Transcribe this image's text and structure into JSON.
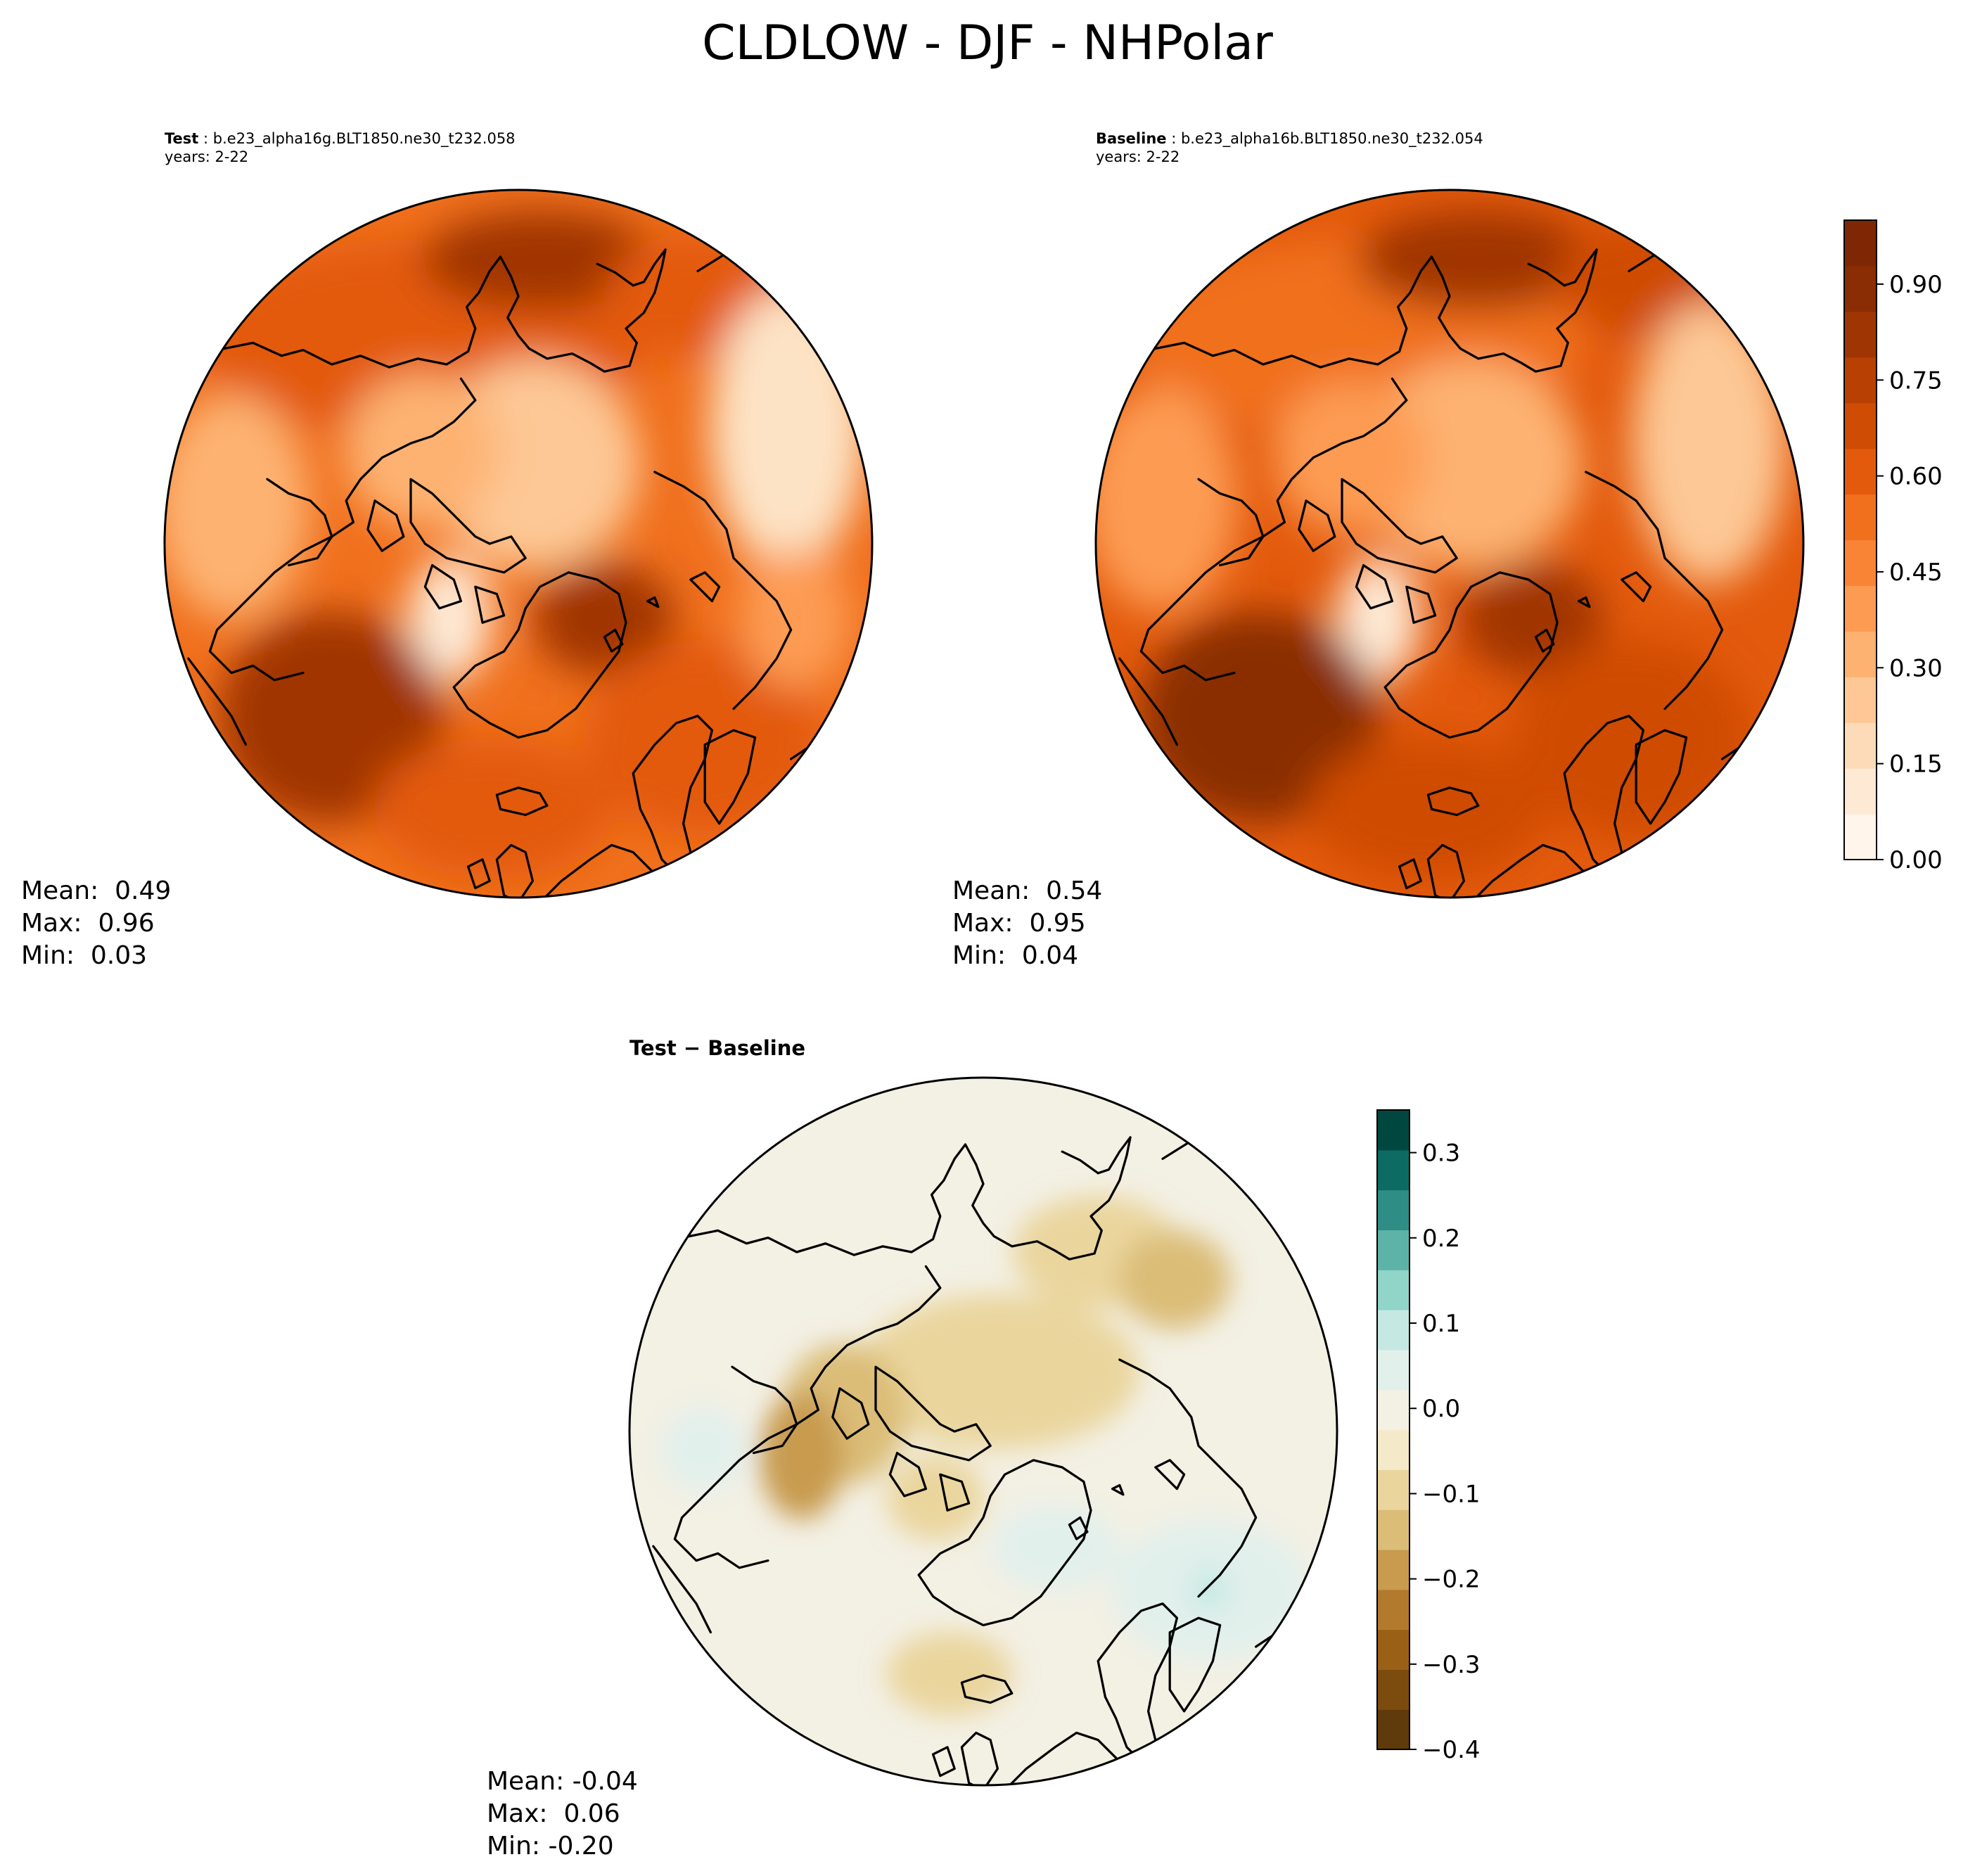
{
  "title": "CLDLOW - DJF - NHPolar",
  "panels": [
    {
      "label": "Test",
      "case": "b.e23_alpha16g.BLT1850.ne30_t232.058",
      "years": "years: 2-22",
      "stats": {
        "mean": "Mean:  0.49",
        "max": "Max:  0.96",
        "min": "Min:  0.03"
      }
    },
    {
      "label": "Baseline",
      "case": "b.e23_alpha16b.BLT1850.ne30_t232.054",
      "years": "years: 2-22",
      "stats": {
        "mean": "Mean:  0.54",
        "max": "Max:  0.95",
        "min": "Min:  0.04"
      }
    },
    {
      "label": "Test − Baseline",
      "stats": {
        "mean": "Mean: -0.04",
        "max": "Max:  0.06",
        "min": "Min: -0.20"
      }
    }
  ],
  "colorbars": {
    "abs": {
      "ticks": [
        "0.00",
        "0.15",
        "0.30",
        "0.45",
        "0.60",
        "0.75",
        "0.90"
      ],
      "tick_values": [
        0.0,
        0.15,
        0.3,
        0.45,
        0.6,
        0.75,
        0.9
      ],
      "range": [
        0.0,
        1.0
      ],
      "colors": [
        "#fff5eb",
        "#fee9d4",
        "#fddbb8",
        "#fdc895",
        "#fdb272",
        "#fd9b52",
        "#f98435",
        "#f0701d",
        "#e35a0c",
        "#cf4c04",
        "#b94003",
        "#a03504",
        "#8a2d04",
        "#7f2704"
      ]
    },
    "diff": {
      "ticks": [
        "−0.4",
        "−0.3",
        "−0.2",
        "−0.1",
        "0.0",
        "0.1",
        "0.2",
        "0.3"
      ],
      "tick_values": [
        -0.4,
        -0.3,
        -0.2,
        -0.1,
        0.0,
        0.1,
        0.2,
        0.3
      ],
      "range": [
        -0.4,
        0.35
      ],
      "colors": [
        "#5f3a0a",
        "#7c4c0f",
        "#996016",
        "#b27a2c",
        "#c89b4f",
        "#dbbd78",
        "#ead59d",
        "#f4e9c8",
        "#f3f0e4",
        "#e2f0ec",
        "#c5e9e2",
        "#91d4c8",
        "#5db3a7",
        "#2e8e85",
        "#0c6b62",
        "#00483f"
      ]
    }
  },
  "chart_data": [
    {
      "type": "heatmap",
      "title": "Test : b.e23_alpha16g.BLT1850.ne30_t232.058",
      "subtitle": "years: 2-22",
      "projection": "north polar stereographic",
      "variable": "CLDLOW",
      "season": "DJF",
      "colormap": "Oranges",
      "clim": [
        0.0,
        1.0
      ],
      "summary": {
        "mean": 0.49,
        "max": 0.96,
        "min": 0.03
      }
    },
    {
      "type": "heatmap",
      "title": "Baseline : b.e23_alpha16b.BLT1850.ne30_t232.054",
      "subtitle": "years: 2-22",
      "projection": "north polar stereographic",
      "variable": "CLDLOW",
      "season": "DJF",
      "colormap": "Oranges",
      "clim": [
        0.0,
        1.0
      ],
      "summary": {
        "mean": 0.54,
        "max": 0.95,
        "min": 0.04
      }
    },
    {
      "type": "heatmap",
      "title": "Test − Baseline",
      "projection": "north polar stereographic",
      "variable": "CLDLOW",
      "season": "DJF",
      "colormap": "BrBG",
      "clim": [
        -0.4,
        0.35
      ],
      "summary": {
        "mean": -0.04,
        "max": 0.06,
        "min": -0.2
      }
    }
  ]
}
